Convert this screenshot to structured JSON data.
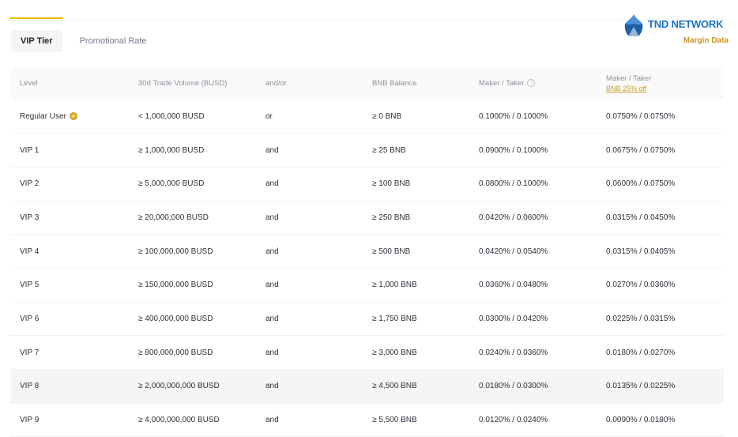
{
  "tabs": [
    {
      "label": "VIP Tier",
      "active": true
    },
    {
      "label": "Promotional Rate",
      "active": false
    }
  ],
  "brand": {
    "name": "TND NETWORK",
    "subtitle": "Margin Data",
    "logo_icon": "tnd-network-logo-icon"
  },
  "table": {
    "headers": {
      "level": "Level",
      "volume": "30d Trade Volume (BUSD)",
      "andor": "and/or",
      "bnb": "BNB Balance",
      "maker_taker": "Maker / Taker",
      "maker_taker_bnb": "Maker / Taker",
      "bnb_discount": "BNB 25% off"
    },
    "rows": [
      {
        "level": "Regular User",
        "volume": "< 1,000,000 BUSD",
        "andor": "or",
        "bnb": "≥ 0 BNB",
        "fee": "0.1000% / 0.1000%",
        "fee_bnb": "0.0750% / 0.0750%"
      },
      {
        "level": "VIP 1",
        "volume": "≥ 1,000,000 BUSD",
        "andor": "and",
        "bnb": "≥ 25 BNB",
        "fee": "0.0900% / 0.1000%",
        "fee_bnb": "0.0675% / 0.0750%"
      },
      {
        "level": "VIP 2",
        "volume": "≥ 5,000,000 BUSD",
        "andor": "and",
        "bnb": "≥ 100 BNB",
        "fee": "0.0800% / 0.1000%",
        "fee_bnb": "0.0600% / 0.0750%"
      },
      {
        "level": "VIP 3",
        "volume": "≥ 20,000,000 BUSD",
        "andor": "and",
        "bnb": "≥ 250 BNB",
        "fee": "0.0420% / 0.0600%",
        "fee_bnb": "0.0315% / 0.0450%"
      },
      {
        "level": "VIP 4",
        "volume": "≥ 100,000,000 BUSD",
        "andor": "and",
        "bnb": "≥ 500 BNB",
        "fee": "0.0420% / 0.0540%",
        "fee_bnb": "0.0315% / 0.0405%"
      },
      {
        "level": "VIP 5",
        "volume": "≥ 150,000,000 BUSD",
        "andor": "and",
        "bnb": "≥ 1,000 BNB",
        "fee": "0.0360% / 0.0480%",
        "fee_bnb": "0.0270% / 0.0360%"
      },
      {
        "level": "VIP 6",
        "volume": "≥ 400,000,000 BUSD",
        "andor": "and",
        "bnb": "≥ 1,750 BNB",
        "fee": "0.0300% / 0.0420%",
        "fee_bnb": "0.0225% / 0.0315%"
      },
      {
        "level": "VIP 7",
        "volume": "≥ 800,000,000 BUSD",
        "andor": "and",
        "bnb": "≥ 3,000 BNB",
        "fee": "0.0240% / 0.0360%",
        "fee_bnb": "0.0180% / 0.0270%"
      },
      {
        "level": "VIP 8",
        "volume": "≥ 2,000,000,000 BUSD",
        "andor": "and",
        "bnb": "≥ 4,500 BNB",
        "fee": "0.0180% / 0.0300%",
        "fee_bnb": "0.0135% / 0.0225%"
      },
      {
        "level": "VIP 9",
        "volume": "≥ 4,000,000,000 BUSD",
        "andor": "and",
        "bnb": "≥ 5,500 BNB",
        "fee": "0.0120% / 0.0240%",
        "fee_bnb": "0.0090% / 0.0180%"
      }
    ]
  },
  "colors": {
    "accent": "#f0b90b",
    "link_gold": "#c99a1c",
    "brand_blue": "#1a73c9"
  }
}
